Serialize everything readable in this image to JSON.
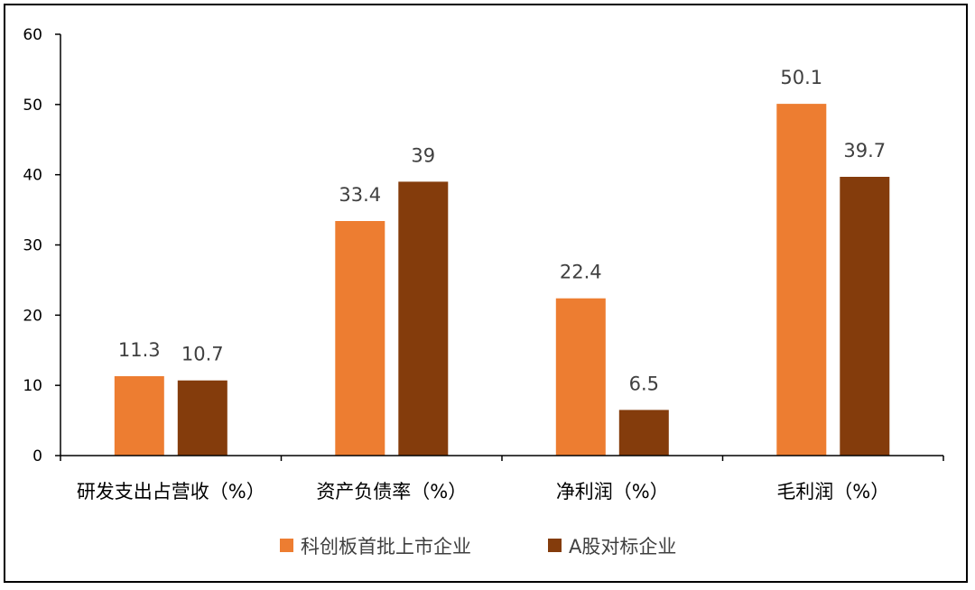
{
  "chart_data": {
    "type": "bar",
    "categories": [
      "研发支出占营收（%）",
      "资产负债率（%）",
      "净利润（%）",
      "毛利润（%）"
    ],
    "series": [
      {
        "name": "科创板首批上市企业",
        "values": [
          11.3,
          33.4,
          22.4,
          50.1
        ],
        "color": "#ED7D31"
      },
      {
        "name": "A股对标企业",
        "values": [
          10.7,
          39,
          6.5,
          39.7
        ],
        "color": "#843C0C"
      }
    ],
    "data_labels": [
      [
        "11.3",
        "33.4",
        "22.4",
        "50.1"
      ],
      [
        "10.7",
        "39",
        "6.5",
        "39.7"
      ]
    ],
    "y_ticks": [
      "0",
      "10",
      "20",
      "30",
      "40",
      "50",
      "60"
    ],
    "ylim": [
      0,
      60
    ],
    "grid": false,
    "legend_position": "bottom"
  }
}
